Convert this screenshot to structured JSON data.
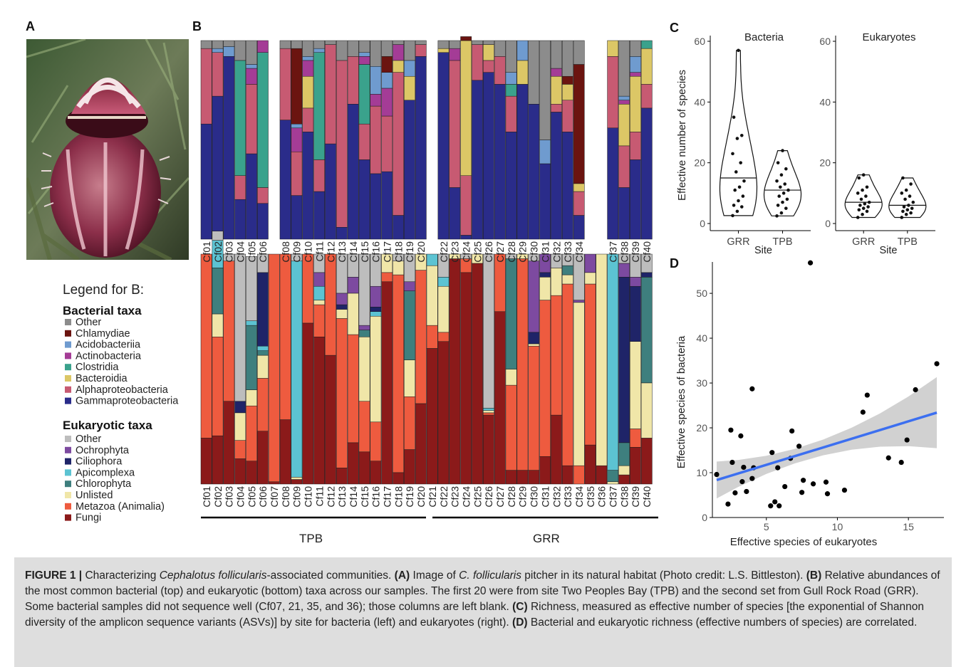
{
  "panel_letters": {
    "a": "A",
    "b": "B",
    "c": "C",
    "d": "D"
  },
  "legend": {
    "title": "Legend for B:",
    "bacterial_heading": "Bacterial taxa",
    "bacterial": [
      {
        "label": "Other",
        "color": "#8c8c8c"
      },
      {
        "label": "Chlamydiae",
        "color": "#6b1410"
      },
      {
        "label": "Acidobacteriia",
        "color": "#6f9bcf"
      },
      {
        "label": "Actinobacteria",
        "color": "#a43c96"
      },
      {
        "label": "Clostridia",
        "color": "#3aa28c"
      },
      {
        "label": "Bacteroidia",
        "color": "#dcc766"
      },
      {
        "label": "Alphaproteobacteria",
        "color": "#c75a72"
      },
      {
        "label": "Gammaproteobacteria",
        "color": "#2a2c8a"
      }
    ],
    "eukaryotic_heading": "Eukaryotic taxa",
    "eukaryotic": [
      {
        "label": "Other",
        "color": "#bdbdbd"
      },
      {
        "label": "Ochrophyta",
        "color": "#7d4aa0"
      },
      {
        "label": "Ciliophora",
        "color": "#1f2468"
      },
      {
        "label": "Apicomplexa",
        "color": "#5cc3d2"
      },
      {
        "label": "Chlorophyta",
        "color": "#3e7f7e"
      },
      {
        "label": "Unlisted",
        "color": "#f0e6a8"
      },
      {
        "label": "Metazoa (Animalia)",
        "color": "#ee5b3f"
      },
      {
        "label": "Fungi",
        "color": "#8b1a1a"
      }
    ]
  },
  "site_labels": {
    "tpb": "TPB",
    "grr": "GRR"
  },
  "bacterial_groups": [
    [
      "Cf01",
      "Cf02",
      "Cf03",
      "Cf04",
      "Cf05",
      "Cf06"
    ],
    [
      "Cf08",
      "Cf09",
      "Cf10",
      "Cf11",
      "Cf12",
      "Cf13",
      "Cf14",
      "Cf15",
      "Cf16",
      "Cf17",
      "Cf18",
      "Cf19",
      "Cf20"
    ],
    [
      "Cf22",
      "Cf23",
      "Cf24",
      "Cf25",
      "Cf26",
      "Cf27",
      "Cf28",
      "Cf29",
      "Cf30",
      "Cf31",
      "Cf32",
      "Cf33",
      "Cf34"
    ],
    [
      "Cf37",
      "Cf38",
      "Cf39",
      "Cf40"
    ]
  ],
  "eukaryotic_groups": [
    [
      "Cf01",
      "Cf02",
      "Cf03",
      "Cf04",
      "Cf05",
      "Cf06",
      "Cf07",
      "Cf08",
      "Cf09",
      "Cf10",
      "Cf11",
      "Cf12",
      "Cf13",
      "Cf14",
      "Cf15",
      "Cf16",
      "Cf17",
      "Cf18",
      "Cf19",
      "Cf20"
    ],
    [
      "Cf21",
      "Cf22",
      "Cf23",
      "Cf24",
      "Cf25",
      "Cf26",
      "Cf27",
      "Cf28",
      "Cf29",
      "Cf30",
      "Cf31",
      "Cf32",
      "Cf33",
      "Cf34",
      "Cf35",
      "Cf36",
      "Cf37",
      "Cf38",
      "Cf39",
      "Cf40"
    ]
  ],
  "chart_data": [
    {
      "type": "bar",
      "stacked": true,
      "panel": "B-top",
      "title": "",
      "note": "bacterial stacked relative abundance",
      "series_order": [
        "Gammaproteobacteria",
        "Alphaproteobacteria",
        "Bacteroidia",
        "Clostridia",
        "Actinobacteria",
        "Acidobacteriia",
        "Chlamydiae",
        "Other"
      ],
      "samples": {
        "Cf01": [
          0.58,
          0.38,
          0,
          0,
          0,
          0,
          0,
          0.04
        ],
        "Cf02": [
          0.72,
          0.22,
          0,
          0,
          0,
          0.02,
          0,
          0.04
        ],
        "Cf03": [
          0.92,
          0,
          0,
          0,
          0,
          0.05,
          0,
          0.03
        ],
        "Cf04": [
          0.2,
          0.12,
          0,
          0.58,
          0,
          0,
          0,
          0.1
        ],
        "Cf05": [
          0.43,
          0.35,
          0,
          0,
          0.08,
          0.02,
          0,
          0.12
        ],
        "Cf06": [
          0.18,
          0.08,
          0,
          0.68,
          0.06,
          0,
          0,
          0
        ],
        "Cf08": [
          0.6,
          0.36,
          0,
          0,
          0,
          0,
          0,
          0.04
        ],
        "Cf09": [
          0.22,
          0.22,
          0,
          0,
          0.12,
          0.02,
          0.38,
          0.04
        ],
        "Cf10": [
          0.54,
          0.12,
          0.16,
          0,
          0.08,
          0.02,
          0,
          0.08
        ],
        "Cf11": [
          0.24,
          0.16,
          0,
          0.54,
          0,
          0.02,
          0,
          0.04
        ],
        "Cf12": [
          0.48,
          0.5,
          0,
          0,
          0,
          0,
          0,
          0.02
        ],
        "Cf13": [
          0.06,
          0.84,
          0,
          0,
          0,
          0,
          0,
          0.1
        ],
        "Cf14": [
          0.68,
          0.24,
          0,
          0,
          0,
          0,
          0,
          0.08
        ],
        "Cf15": [
          0.4,
          0.18,
          0,
          0.3,
          0.04,
          0.02,
          0,
          0.06
        ],
        "Cf16": [
          0.33,
          0.34,
          0,
          0,
          0.06,
          0.14,
          0,
          0.13
        ],
        "Cf17": [
          0.34,
          0.28,
          0,
          0,
          0.14,
          0.08,
          0.08,
          0.08
        ],
        "Cf18": [
          0.12,
          0.72,
          0.06,
          0,
          0.08,
          0,
          0,
          0.02
        ],
        "Cf19": [
          0.7,
          0,
          0.12,
          0,
          0,
          0.08,
          0,
          0.1
        ],
        "Cf20": [
          0.92,
          0.06,
          0,
          0,
          0,
          0,
          0,
          0.02
        ],
        "Cf22": [
          0.94,
          0,
          0.02,
          0,
          0,
          0,
          0,
          0.04
        ],
        "Cf23": [
          0.26,
          0.64,
          0,
          0,
          0.06,
          0,
          0,
          0.04
        ],
        "Cf24": [
          0.02,
          0.3,
          0.68,
          0,
          0,
          0,
          0.02,
          0
        ],
        "Cf25": [
          0.8,
          0.18,
          0,
          0,
          0,
          0,
          0,
          0.02
        ],
        "Cf26": [
          0.84,
          0.06,
          0.08,
          0,
          0,
          0,
          0,
          0.02
        ],
        "Cf27": [
          0.78,
          0.14,
          0,
          0,
          0,
          0,
          0,
          0.08
        ],
        "Cf28": [
          0.54,
          0.18,
          0,
          0.06,
          0,
          0.06,
          0,
          0.16
        ],
        "Cf29": [
          0.78,
          0,
          0.12,
          0,
          0,
          0.1,
          0,
          0
        ],
        "Cf30": [
          0.68,
          0,
          0,
          0,
          0,
          0,
          0,
          0.32
        ],
        "Cf31": [
          0.38,
          0,
          0,
          0,
          0,
          0.12,
          0,
          0.5
        ],
        "Cf32": [
          0.64,
          0.04,
          0.14,
          0,
          0.04,
          0,
          0,
          0.14
        ],
        "Cf33": [
          0.54,
          0.16,
          0.08,
          0,
          0,
          0,
          0.04,
          0.18
        ],
        "Cf34": [
          0.12,
          0.12,
          0.04,
          0,
          0,
          0,
          0.6,
          0.12
        ],
        "Cf37": [
          0.56,
          0.36,
          0.08,
          0,
          0,
          0,
          0,
          0
        ],
        "Cf38": [
          0.26,
          0.21,
          0.21,
          0,
          0.02,
          0.02,
          0,
          0.28
        ],
        "Cf39": [
          0.4,
          0.14,
          0.28,
          0,
          0.02,
          0.08,
          0,
          0.08
        ],
        "Cf40": [
          0.66,
          0.12,
          0.18,
          0.04,
          0,
          0,
          0,
          0
        ]
      }
    },
    {
      "type": "bar",
      "stacked": true,
      "panel": "B-bottom",
      "title": "",
      "note": "eukaryotic stacked relative abundance",
      "series_order": [
        "Fungi",
        "Metazoa (Animalia)",
        "Unlisted",
        "Chlorophyta",
        "Apicomplexa",
        "Ciliophora",
        "Ochrophyta",
        "Other"
      ],
      "samples": {
        "Cf01": [
          0.2,
          0.8,
          0,
          0,
          0,
          0,
          0,
          0
        ],
        "Cf02": [
          0.21,
          0.43,
          0.1,
          0.2,
          0.12,
          0,
          0,
          0.04
        ],
        "Cf03": [
          0.36,
          0.61,
          0,
          0,
          0,
          0,
          0,
          0.03
        ],
        "Cf04": [
          0.11,
          0.08,
          0.12,
          0,
          0,
          0.05,
          0,
          0.64
        ],
        "Cf05": [
          0.1,
          0.24,
          0.07,
          0.28,
          0.02,
          0,
          0,
          0.28
        ],
        "Cf06": [
          0.23,
          0.23,
          0.1,
          0.02,
          0.02,
          0.32,
          0,
          0.08
        ],
        "Cf07": [
          0.01,
          0.99,
          0,
          0,
          0,
          0,
          0,
          0
        ],
        "Cf08": [
          0.28,
          0.72,
          0,
          0,
          0,
          0,
          0,
          0
        ],
        "Cf09": [
          0.02,
          0,
          0.01,
          0,
          0.94,
          0,
          0,
          0.03
        ],
        "Cf10": [
          0.7,
          0.3,
          0,
          0,
          0,
          0,
          0,
          0
        ],
        "Cf11": [
          0.64,
          0.14,
          0.02,
          0,
          0.06,
          0,
          0.06,
          0.08
        ],
        "Cf12": [
          0.56,
          0.44,
          0,
          0,
          0,
          0,
          0,
          0
        ],
        "Cf13": [
          0.07,
          0.65,
          0.04,
          0,
          0,
          0.02,
          0.05,
          0.17
        ],
        "Cf14": [
          0.18,
          0.47,
          0.18,
          0,
          0,
          0,
          0.07,
          0.1
        ],
        "Cf15": [
          0.14,
          0.22,
          0.28,
          0.03,
          0,
          0,
          0.02,
          0.31
        ],
        "Cf16": [
          0.1,
          0.17,
          0.46,
          0,
          0.02,
          0.02,
          0.09,
          0.14
        ],
        "Cf17": [
          0.88,
          0.04,
          0.08,
          0,
          0,
          0,
          0,
          0
        ],
        "Cf18": [
          0.05,
          0.86,
          0.06,
          0,
          0,
          0,
          0,
          0.03
        ],
        "Cf19": [
          0.15,
          0.23,
          0.16,
          0.3,
          0,
          0,
          0.04,
          0.12
        ],
        "Cf20": [
          0.35,
          0.58,
          0.07,
          0,
          0,
          0,
          0,
          0
        ],
        "Cf21": [
          0.59,
          0.1,
          0.26,
          0,
          0.05,
          0,
          0,
          0
        ],
        "Cf22": [
          0.62,
          0.04,
          0.2,
          0,
          0.04,
          0,
          0,
          0.1
        ],
        "Cf23": [
          0.98,
          0,
          0.02,
          0,
          0,
          0,
          0,
          0
        ],
        "Cf24": [
          0.92,
          0.06,
          0,
          0,
          0,
          0,
          0,
          0.02
        ],
        "Cf25": [
          0.96,
          0,
          0.04,
          0,
          0,
          0,
          0,
          0
        ],
        "Cf26": [
          0.3,
          0.01,
          0.01,
          0,
          0.01,
          0,
          0,
          0.67
        ],
        "Cf27": [
          0.75,
          0.25,
          0,
          0,
          0,
          0,
          0,
          0
        ],
        "Cf28": [
          0.06,
          0.37,
          0.07,
          0.48,
          0,
          0,
          0,
          0.02
        ],
        "Cf29": [
          0.06,
          0.92,
          0.02,
          0,
          0,
          0,
          0,
          0
        ],
        "Cf30": [
          0.06,
          0.54,
          0.01,
          0,
          0,
          0.05,
          0.31,
          0.03
        ],
        "Cf31": [
          0.12,
          0.68,
          0.1,
          0,
          0,
          0.02,
          0.08,
          0
        ],
        "Cf32": [
          0.3,
          0.52,
          0.12,
          0,
          0,
          0,
          0,
          0.06
        ],
        "Cf33": [
          0.08,
          0.79,
          0.04,
          0.04,
          0,
          0,
          0,
          0.05
        ],
        "Cf34": [
          0,
          0.08,
          0.71,
          0,
          0,
          0,
          0.01,
          0.2
        ],
        "Cf35": [
          0.17,
          0.7,
          0.05,
          0,
          0,
          0,
          0.08,
          0
        ],
        "Cf36": [
          0.08,
          0,
          0.92,
          0,
          0,
          0,
          0,
          0
        ],
        "Cf37": [
          0,
          0,
          0.01,
          0.05,
          0.94,
          0,
          0,
          0
        ],
        "Cf38": [
          0.04,
          0,
          0.04,
          0.1,
          0,
          0.72,
          0.06,
          0.04
        ],
        "Cf39": [
          0.16,
          0.08,
          0.38,
          0,
          0,
          0.24,
          0.04,
          0.1
        ],
        "Cf40": [
          0.2,
          0,
          0.24,
          0.46,
          0,
          0.02,
          0,
          0.08
        ]
      }
    },
    {
      "type": "violin",
      "panel": "C-left",
      "title": "Bacteria",
      "xlabel": "Site",
      "ylabel": "Effective number of species",
      "categories": [
        "GRR",
        "TPB"
      ],
      "ylim": [
        0,
        60
      ],
      "yticks": [
        0,
        20,
        40,
        60
      ],
      "medians": [
        15,
        11
      ],
      "points": {
        "GRR": [
          2.6,
          4,
          5.5,
          6,
          7.5,
          9,
          11,
          12,
          14,
          17,
          20,
          23,
          28,
          29,
          35,
          57
        ],
        "TPB": [
          2.5,
          3.5,
          5,
          6,
          7,
          8,
          9,
          10,
          11,
          12,
          13,
          14,
          16,
          18,
          20,
          24
        ]
      }
    },
    {
      "type": "violin",
      "panel": "C-right",
      "title": "Eukaryotes",
      "xlabel": "Site",
      "ylabel": "",
      "categories": [
        "GRR",
        "TPB"
      ],
      "ylim": [
        0,
        60
      ],
      "yticks": [
        0,
        20,
        40,
        60
      ],
      "medians": [
        7,
        6
      ],
      "points": {
        "GRR": [
          2,
          3,
          4,
          4.5,
          5,
          5.5,
          6,
          6.5,
          7,
          8,
          9,
          10,
          11,
          12,
          15,
          16
        ],
        "TPB": [
          2,
          3,
          3.5,
          4,
          4.5,
          5,
          5.5,
          6,
          7,
          8,
          9,
          10,
          11,
          13,
          15
        ]
      }
    },
    {
      "type": "scatter",
      "panel": "D",
      "title": "",
      "xlabel": "Effective species of eukaryotes",
      "ylabel": "Effective species of bacteria",
      "xlim": [
        1.2,
        17.5
      ],
      "ylim": [
        0,
        57
      ],
      "xticks": [
        5,
        10,
        15
      ],
      "yticks": [
        0,
        10,
        20,
        30,
        40,
        50
      ],
      "regression": {
        "slope": 0.97,
        "intercept": 6.9,
        "color": "#3c6ff0"
      },
      "points": [
        [
          1.5,
          9.6
        ],
        [
          2.3,
          3
        ],
        [
          2.5,
          19.5
        ],
        [
          2.6,
          12.3
        ],
        [
          2.8,
          5.5
        ],
        [
          3.2,
          18.2
        ],
        [
          3.3,
          8
        ],
        [
          3.4,
          11.2
        ],
        [
          3.6,
          5.8
        ],
        [
          4,
          8.7
        ],
        [
          4,
          28.7
        ],
        [
          4.1,
          11.1
        ],
        [
          5.3,
          2.6
        ],
        [
          5.4,
          14.5
        ],
        [
          5.6,
          3.5
        ],
        [
          5.8,
          11.1
        ],
        [
          5.9,
          2.6
        ],
        [
          6.3,
          6.9
        ],
        [
          6.7,
          13.2
        ],
        [
          6.8,
          19.3
        ],
        [
          7.3,
          15.9
        ],
        [
          7.5,
          5.6
        ],
        [
          7.6,
          8.3
        ],
        [
          8.1,
          56.8
        ],
        [
          8.3,
          7.5
        ],
        [
          9.2,
          7.9
        ],
        [
          9.3,
          5.3
        ],
        [
          10.5,
          6.1
        ],
        [
          11.8,
          23.5
        ],
        [
          12.1,
          27.3
        ],
        [
          13.6,
          13.3
        ],
        [
          14.5,
          12.3
        ],
        [
          14.9,
          17.3
        ],
        [
          15.5,
          28.5
        ],
        [
          17,
          34.3
        ]
      ]
    }
  ]
}
